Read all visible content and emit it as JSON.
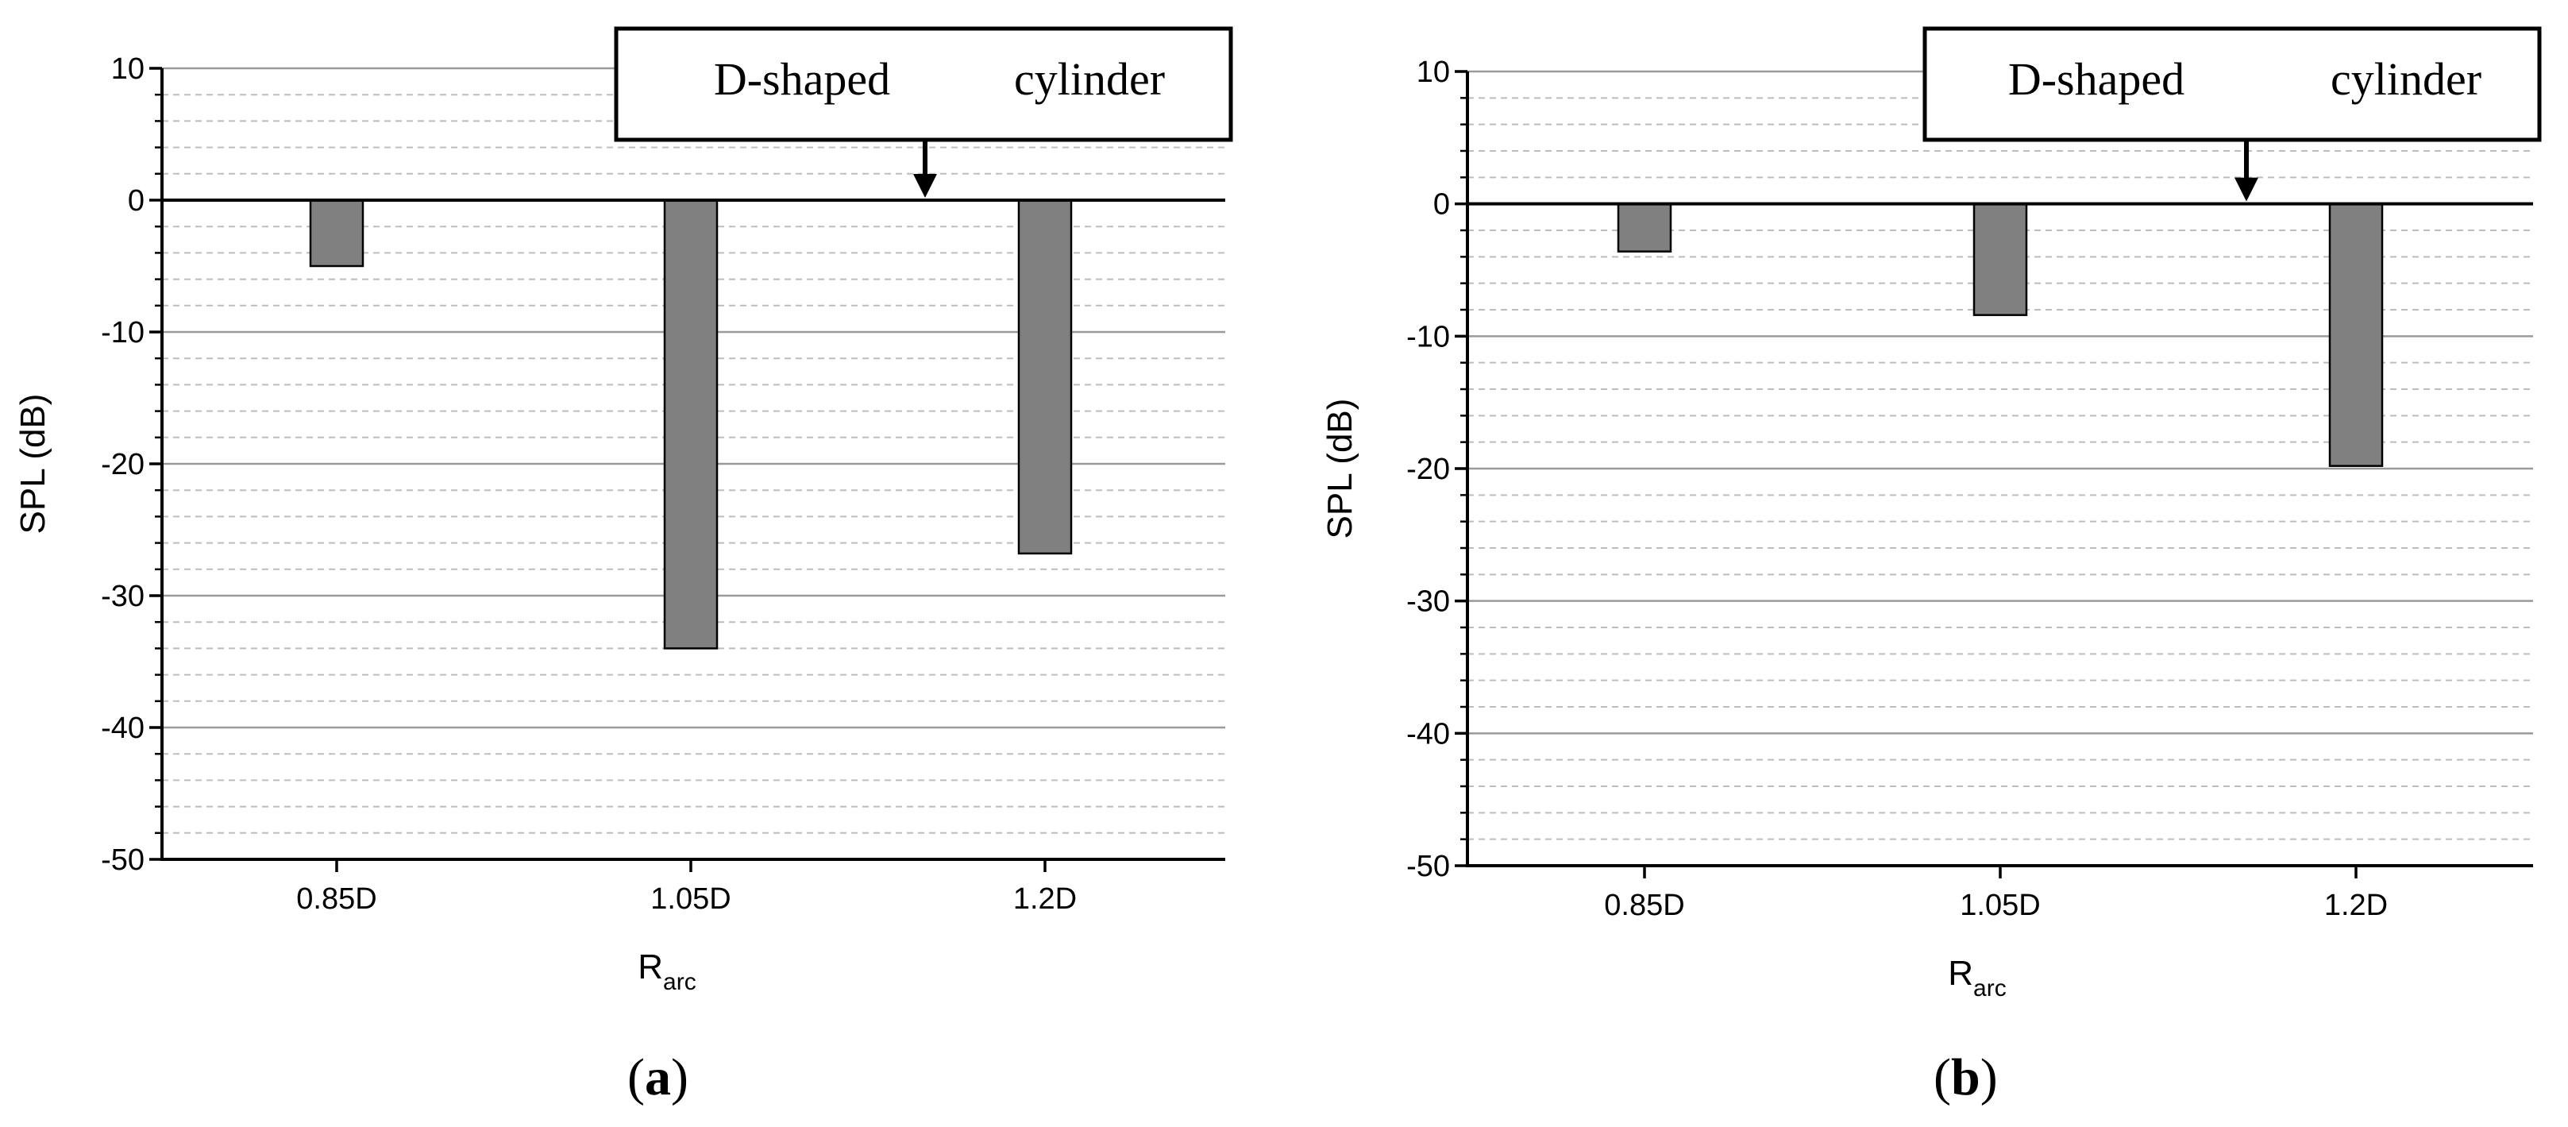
{
  "chart_data": [
    {
      "panel": "a",
      "type": "bar",
      "panel_label": "a",
      "categories": [
        "0.85D",
        "1.05D",
        "1.2D"
      ],
      "values": [
        -5,
        -34,
        -26.8
      ],
      "xlabel_main": "R",
      "xlabel_sub": "arc",
      "ylabel": "SPL (dB)",
      "ylim": [
        -50,
        10
      ],
      "yticks": [
        10,
        0,
        -10,
        -20,
        -30,
        -40,
        -50
      ],
      "grid": {
        "major": true,
        "minor": true
      },
      "annotation": {
        "word1": "D-shaped",
        "word2": "cylinder",
        "arrow_x": 1.6
      },
      "colors": {
        "bar": "#808080",
        "bar_edge": "#000000",
        "major_grid": "#9a9a9a",
        "minor_grid": "#bdbdbd"
      }
    },
    {
      "panel": "b",
      "type": "bar",
      "panel_label": "b",
      "categories": [
        "0.85D",
        "1.05D",
        "1.2D"
      ],
      "values": [
        -3.6,
        -8.4,
        -19.8
      ],
      "xlabel_main": "R",
      "xlabel_sub": "arc",
      "ylabel": "SPL (dB)",
      "ylim": [
        -50,
        10
      ],
      "yticks": [
        10,
        0,
        -10,
        -20,
        -30,
        -40,
        -50
      ],
      "grid": {
        "major": true,
        "minor": true
      },
      "annotation": {
        "word1": "D-shaped",
        "word2": "cylinder",
        "arrow_x": 1.6
      },
      "colors": {
        "bar": "#808080",
        "bar_edge": "#000000",
        "major_grid": "#9a9a9a",
        "minor_grid": "#bdbdbd"
      }
    }
  ]
}
